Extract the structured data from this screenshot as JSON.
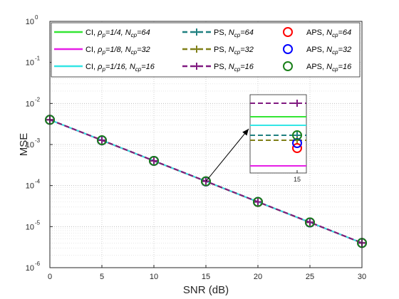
{
  "chart_data": {
    "type": "line",
    "xlabel": "SNR (dB)",
    "ylabel": "MSE",
    "x_ticks": [
      0,
      5,
      10,
      15,
      20,
      25,
      30
    ],
    "xlim": [
      0,
      30
    ],
    "ylim": [
      1e-06,
      1
    ],
    "y_scale": "log",
    "y_ticks": [
      "10^-6",
      "10^-5",
      "10^-4",
      "10^-3",
      "10^-2",
      "10^-1",
      "10^0"
    ],
    "grid": true,
    "legend_position": "top",
    "x": [
      0,
      5,
      10,
      15,
      20,
      25,
      30
    ],
    "series": [
      {
        "name": "CI, ρp=1/4, Ncp=64",
        "legend_main": "CI,",
        "legend_rho": "ρ",
        "legend_rho_sub": "p",
        "legend_rho_val": "=1/4,",
        "legend_n": "N",
        "legend_n_sub": "cp",
        "legend_n_val": "=64",
        "style": "solid",
        "color": "#33e633",
        "values": [
          0.004,
          0.00127,
          0.0004,
          0.000127,
          4e-05,
          1.27e-05,
          4e-06
        ]
      },
      {
        "name": "CI, ρp=1/8, Ncp=32",
        "legend_main": "CI,",
        "legend_rho": "ρ",
        "legend_rho_sub": "p",
        "legend_rho_val": "=1/8,",
        "legend_n": "N",
        "legend_n_sub": "cp",
        "legend_n_val": "=32",
        "style": "solid",
        "color": "#e61ee6",
        "values": [
          0.004,
          0.00126,
          0.000398,
          0.000126,
          3.98e-05,
          1.26e-05,
          4e-06
        ]
      },
      {
        "name": "CI, ρp=1/16, Ncp=16",
        "legend_main": "CI,",
        "legend_rho": "ρ",
        "legend_rho_sub": "p",
        "legend_rho_val": "=1/16,",
        "legend_n": "N",
        "legend_n_sub": "cp",
        "legend_n_val": "=16",
        "style": "solid",
        "color": "#33e6e6",
        "values": [
          0.004,
          0.00127,
          0.0004,
          0.000127,
          4e-05,
          1.27e-05,
          4e-06
        ]
      },
      {
        "name": "PS, Ncp=64",
        "legend_main": "PS,",
        "legend_n": "N",
        "legend_n_sub": "cp",
        "legend_n_val": "=64",
        "style": "dashed-plus",
        "color": "#1f8080",
        "values": [
          0.004,
          0.00127,
          0.0004,
          0.000127,
          4e-05,
          1.27e-05,
          4e-06
        ]
      },
      {
        "name": "PS, Ncp=32",
        "legend_main": "PS,",
        "legend_n": "N",
        "legend_n_sub": "cp",
        "legend_n_val": "=32",
        "style": "dashed-plus",
        "color": "#808019",
        "values": [
          0.004,
          0.00127,
          0.0004,
          0.000127,
          4e-05,
          1.27e-05,
          4e-06
        ]
      },
      {
        "name": "PS, Ncp=16",
        "legend_main": "PS,",
        "legend_n": "N",
        "legend_n_sub": "cp",
        "legend_n_val": "=16",
        "style": "dashed-plus",
        "color": "#801a80",
        "values": [
          0.004,
          0.00128,
          0.000402,
          0.000128,
          4.02e-05,
          1.28e-05,
          4e-06
        ]
      },
      {
        "name": "APS, Ncp=64",
        "legend_main": "APS,",
        "legend_n": "N",
        "legend_n_sub": "cp",
        "legend_n_val": "=64",
        "style": "circle",
        "color": "#ff0000",
        "values": [
          0.004,
          0.00126,
          0.000398,
          0.000126,
          3.98e-05,
          1.26e-05,
          4e-06
        ]
      },
      {
        "name": "APS, Ncp=32",
        "legend_main": "APS,",
        "legend_n": "N",
        "legend_n_sub": "cp",
        "legend_n_val": "=32",
        "style": "circle",
        "color": "#0000ff",
        "values": [
          0.004,
          0.00126,
          0.000399,
          0.000126,
          3.99e-05,
          1.26e-05,
          4e-06
        ]
      },
      {
        "name": "APS, Ncp=16",
        "legend_main": "APS,",
        "legend_n": "N",
        "legend_n_sub": "cp",
        "legend_n_val": "=16",
        "style": "circle",
        "color": "#1a801a",
        "values": [
          0.004,
          0.00127,
          0.0004,
          0.000127,
          4e-05,
          1.27e-05,
          4e-06
        ]
      }
    ],
    "inset": {
      "x_tick": "15",
      "zoom_at": {
        "x": 15,
        "y": 0.000127
      }
    }
  }
}
